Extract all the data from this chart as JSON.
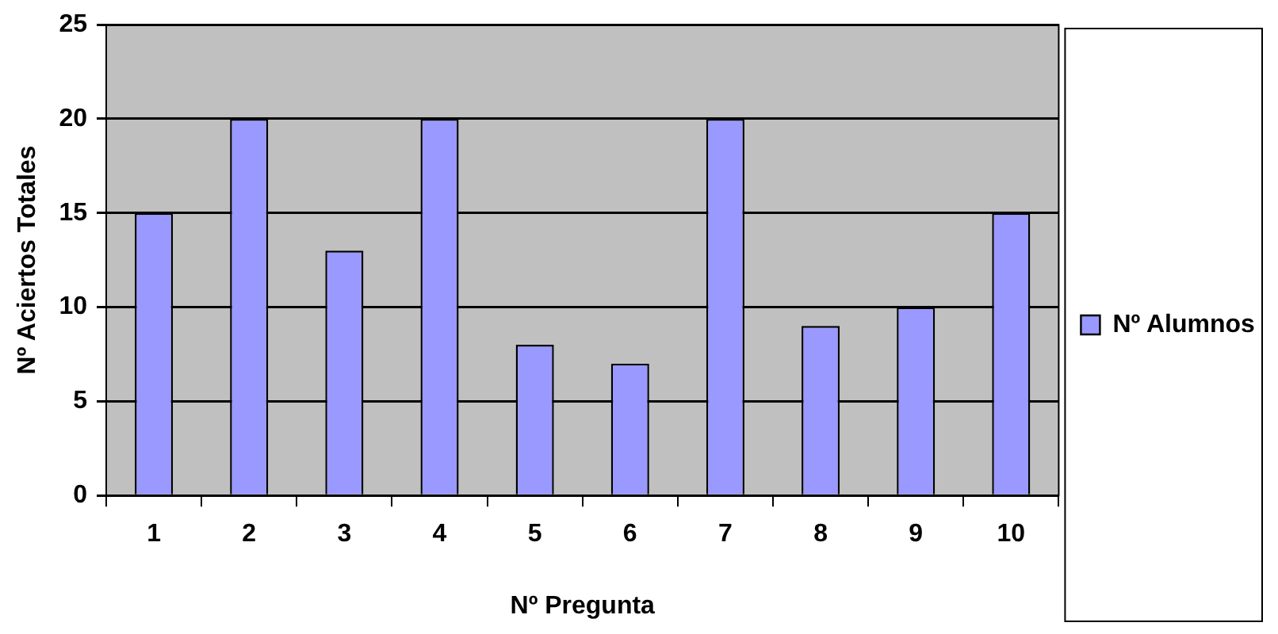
{
  "chart_data": {
    "type": "bar",
    "xlabel": "Nº Pregunta",
    "ylabel": "Nº Aciertos Totales",
    "categories": [
      "1",
      "2",
      "3",
      "4",
      "5",
      "6",
      "7",
      "8",
      "9",
      "10"
    ],
    "series": [
      {
        "name": "Nº Alumnos",
        "color": "#9999ff",
        "values": [
          15,
          20,
          13,
          20,
          8,
          7,
          20,
          9,
          10,
          15
        ]
      }
    ],
    "ylim": [
      0,
      25
    ],
    "yticks": [
      0,
      5,
      10,
      15,
      20,
      25
    ],
    "grid": "y",
    "legend": "right"
  }
}
